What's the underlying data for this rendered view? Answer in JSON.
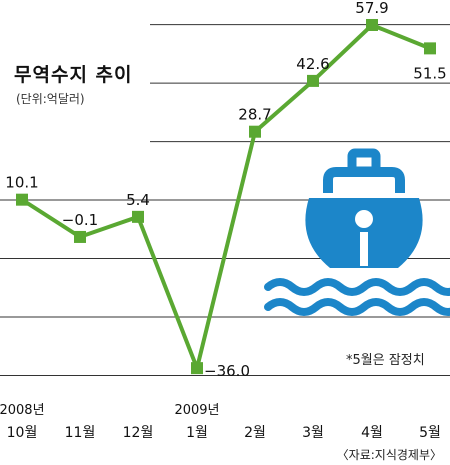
{
  "title": "무역수지 추이",
  "unit_label": "(단위:억달러)",
  "footnote": "*5월은 잠정치",
  "source": "〈자료:지식경제부〉",
  "colors": {
    "line": "#5aa832",
    "marker": "#5aa832",
    "grid": "#333333",
    "icon": "#1c86c9",
    "text": "#111111"
  },
  "icon": "ship-on-water-icon",
  "chart_data": {
    "type": "line",
    "title": "무역수지 추이",
    "ylabel": "(단위:억달러)",
    "ylim": [
      -48,
      62
    ],
    "grid": true,
    "categories": [
      {
        "top": "2008년",
        "bottom": "10월"
      },
      {
        "top": "",
        "bottom": "11월"
      },
      {
        "top": "",
        "bottom": "12월"
      },
      {
        "top": "2009년",
        "bottom": "1월"
      },
      {
        "top": "",
        "bottom": "2월"
      },
      {
        "top": "",
        "bottom": "3월"
      },
      {
        "top": "",
        "bottom": "4월"
      },
      {
        "top": "",
        "bottom": "5월"
      }
    ],
    "values": [
      10.1,
      -0.1,
      5.4,
      -36.0,
      28.7,
      42.6,
      57.9,
      51.5
    ],
    "value_labels": [
      "10.1",
      "−0.1",
      "5.4",
      "−36.0",
      "28.7",
      "42.6",
      "57.9",
      "51.5"
    ]
  }
}
